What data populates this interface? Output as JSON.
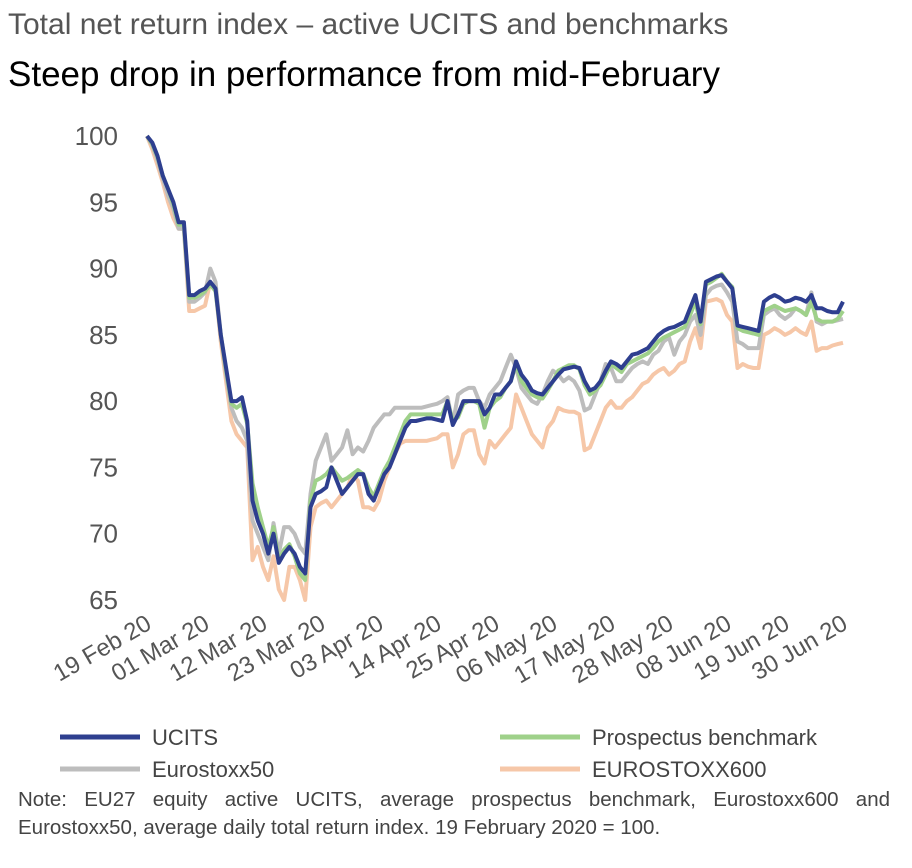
{
  "chart_data": {
    "type": "line",
    "title": "Total net return index – active UCITS and benchmarks",
    "subtitle": "Steep drop in performance from mid-February",
    "note": "Note: EU27 equity active UCITS, average prospectus benchmark, Eurostoxx600 and Eurostoxx50, average daily total return index. 19 February 2020 = 100.",
    "categories": [
      "19 Feb 20",
      null,
      null,
      null,
      null,
      null,
      null,
      null,
      null,
      null,
      null,
      "01 Mar 20",
      null,
      null,
      null,
      null,
      null,
      null,
      null,
      null,
      null,
      null,
      "12 Mar 20",
      null,
      null,
      null,
      null,
      null,
      null,
      null,
      null,
      null,
      null,
      "23 Mar 20",
      null,
      null,
      null,
      null,
      null,
      null,
      null,
      null,
      null,
      null,
      "03 Apr 20",
      null,
      null,
      null,
      null,
      null,
      null,
      null,
      null,
      null,
      null,
      "14 Apr 20",
      null,
      null,
      null,
      null,
      null,
      null,
      null,
      null,
      null,
      null,
      "25 Apr 20",
      null,
      null,
      null,
      null,
      null,
      null,
      null,
      null,
      null,
      null,
      "06 May 20",
      null,
      null,
      null,
      null,
      null,
      null,
      null,
      null,
      null,
      null,
      "17 May 20",
      null,
      null,
      null,
      null,
      null,
      null,
      null,
      null,
      null,
      null,
      "28 May 20",
      null,
      null,
      null,
      null,
      null,
      null,
      null,
      null,
      null,
      null,
      "08 Jun 20",
      null,
      null,
      null,
      null,
      null,
      null,
      null,
      null,
      null,
      null,
      "19 Jun 20",
      null,
      null,
      null,
      null,
      null,
      null,
      null,
      null,
      null,
      null,
      "30 Jun 20"
    ],
    "series": [
      {
        "name": "UCITS",
        "color": "#2e3f8f",
        "values": [
          100,
          99.5,
          98.5,
          97,
          96,
          95,
          93.5,
          93.5,
          88,
          88,
          88.3,
          88.5,
          89,
          88.5,
          85,
          82.5,
          80,
          80,
          80.3,
          78.5,
          72.5,
          71,
          70,
          68.5,
          70,
          67.8,
          68.5,
          69,
          68.5,
          67.5,
          67,
          72,
          73,
          73.2,
          73.5,
          75,
          74,
          73,
          73.5,
          74,
          74.5,
          74.5,
          73,
          72.5,
          73.5,
          74.5,
          75,
          76,
          77,
          78,
          78.5,
          78.5,
          78.6,
          78.7,
          78.7,
          78.6,
          78.5,
          80,
          78.2,
          79,
          80,
          80,
          80,
          80,
          79,
          79.5,
          80.5,
          80.5,
          81,
          81.5,
          83,
          82,
          81.5,
          80.8,
          80.6,
          80.5,
          81,
          81.5,
          82,
          82.4,
          82.5,
          82.6,
          82.5,
          81.5,
          80.8,
          81,
          81.5,
          82.3,
          83,
          82.8,
          82.5,
          83,
          83.5,
          83.6,
          83.8,
          84,
          84.5,
          85,
          85.3,
          85.5,
          85.6,
          85.8,
          86,
          87,
          88,
          86,
          89,
          89.2,
          89.4,
          89.5,
          89,
          88.5,
          85.7,
          85.6,
          85.5,
          85.4,
          85.3,
          87.5,
          87.8,
          88,
          87.8,
          87.5,
          87.6,
          87.8,
          87.7,
          87.5,
          88,
          87,
          87,
          86.8,
          86.7,
          86.7,
          87.5
        ]
      },
      {
        "name": "Prospectus benchmark",
        "color": "#9fd18a",
        "values": [
          100,
          99.4,
          98.4,
          97,
          96,
          94.8,
          93.3,
          93.3,
          87.8,
          87.8,
          88,
          88.3,
          88.8,
          88.3,
          85,
          82.3,
          79.8,
          79.5,
          79.8,
          78.3,
          73.8,
          72,
          70.5,
          69,
          70.5,
          68,
          68.8,
          69.2,
          68.3,
          67,
          66.5,
          72.5,
          74,
          74.2,
          74.5,
          75,
          74.5,
          74,
          74.2,
          74.5,
          74.8,
          74.5,
          73.5,
          72.8,
          73.8,
          74.8,
          75.5,
          76.5,
          77.5,
          78.5,
          79,
          79,
          79,
          79,
          79,
          79,
          79,
          80,
          78.5,
          78.8,
          79.8,
          80,
          80,
          79.8,
          78,
          79.5,
          80,
          80.3,
          81,
          81.5,
          82.8,
          81.5,
          81,
          80.5,
          80.3,
          80.2,
          80.8,
          81.5,
          82.3,
          82.5,
          82.7,
          82.7,
          82.4,
          81.2,
          80.5,
          80.8,
          81.2,
          82,
          82.8,
          82.5,
          82.2,
          82.8,
          83,
          83.2,
          83.4,
          83.6,
          84,
          84.5,
          84.8,
          85,
          85.2,
          85.4,
          85.6,
          86.5,
          87.5,
          85.8,
          88.8,
          89,
          89.3,
          89.6,
          89,
          88.6,
          85.5,
          85.3,
          85.2,
          85.1,
          85,
          86.8,
          87,
          87.2,
          87,
          86.8,
          86.9,
          87,
          86.8,
          86.5,
          87.5,
          86.2,
          86,
          86,
          86,
          86.2,
          86.8
        ]
      },
      {
        "name": "Eurostoxx50",
        "color": "#bdbdbd",
        "values": [
          100,
          99.3,
          98.2,
          96.8,
          95.5,
          94.5,
          93,
          93,
          87.5,
          87.5,
          87.8,
          88.2,
          90,
          89,
          85,
          82,
          79.5,
          78.5,
          78,
          77,
          71,
          70,
          69,
          68,
          70.8,
          68.5,
          70.5,
          70.5,
          70,
          69,
          68.5,
          73,
          75.5,
          76.5,
          77.5,
          75.5,
          76,
          76.5,
          77.8,
          76,
          76.5,
          76.2,
          77,
          78,
          78.5,
          79,
          79,
          79.5,
          79.5,
          79.5,
          79.5,
          79.5,
          79.5,
          79.6,
          79.7,
          79.8,
          80,
          80.3,
          78.3,
          80.5,
          80.8,
          81,
          81,
          80,
          79.5,
          80.5,
          81,
          81.5,
          82.5,
          83.5,
          82.5,
          81,
          80.5,
          80,
          79.8,
          80.5,
          81.5,
          82.3,
          82,
          81.5,
          81.8,
          81.5,
          80.8,
          79.3,
          79.5,
          80.5,
          81.5,
          82.8,
          82.5,
          81.5,
          81.5,
          82,
          82.5,
          82.8,
          83,
          82.8,
          83.5,
          83.8,
          84.5,
          84.8,
          83.5,
          84.5,
          85,
          86,
          86.5,
          85,
          88,
          88.5,
          88.7,
          88.8,
          88.2,
          87.5,
          84.5,
          84.3,
          84,
          84,
          84,
          86.5,
          86.8,
          87,
          86.5,
          86.2,
          86.5,
          87,
          86.8,
          86.5,
          88.2,
          86,
          85.8,
          86,
          86,
          86.1,
          86.2
        ]
      },
      {
        "name": "EUROSTOXX600",
        "color": "#f6c7a8",
        "values": [
          100,
          99,
          97.8,
          96.5,
          95,
          93.8,
          93,
          93,
          86.8,
          86.8,
          87,
          87.2,
          89,
          88.5,
          84.5,
          81.5,
          78.5,
          77.5,
          77,
          76.5,
          68,
          69,
          67.5,
          66.5,
          68.3,
          65.8,
          65,
          67.5,
          67.5,
          66.5,
          65,
          70.5,
          72,
          72.3,
          72.5,
          72,
          72.5,
          73,
          73.5,
          74.5,
          74,
          72,
          72,
          71.8,
          72.5,
          74,
          75,
          76,
          76.8,
          77,
          77,
          77,
          77,
          77,
          77.1,
          77.2,
          77.5,
          77.5,
          75,
          76,
          77.5,
          77.8,
          77.8,
          76,
          75.3,
          77,
          76.5,
          77,
          77.5,
          78,
          80.5,
          79.5,
          78.5,
          77.5,
          77,
          76.5,
          78,
          78.5,
          79.5,
          79.3,
          79.2,
          79.2,
          79,
          76.3,
          76.5,
          77.5,
          78.5,
          79.5,
          80,
          79.5,
          79.5,
          80,
          80.3,
          80.8,
          81.3,
          81.5,
          82,
          82.3,
          82.5,
          82,
          82.3,
          82.8,
          83,
          84.5,
          85.5,
          84,
          87.5,
          87.6,
          87.7,
          87.5,
          86.5,
          86,
          82.5,
          82.8,
          82.6,
          82.5,
          82.5,
          85,
          85.2,
          85.5,
          85.3,
          85,
          85.2,
          85.5,
          85.2,
          85,
          86,
          83.8,
          84,
          84,
          84.2,
          84.3,
          84.4
        ]
      }
    ],
    "ylim": [
      65,
      100
    ],
    "yticks": [
      65,
      70,
      75,
      80,
      85,
      90,
      95,
      100
    ],
    "grid": false
  }
}
